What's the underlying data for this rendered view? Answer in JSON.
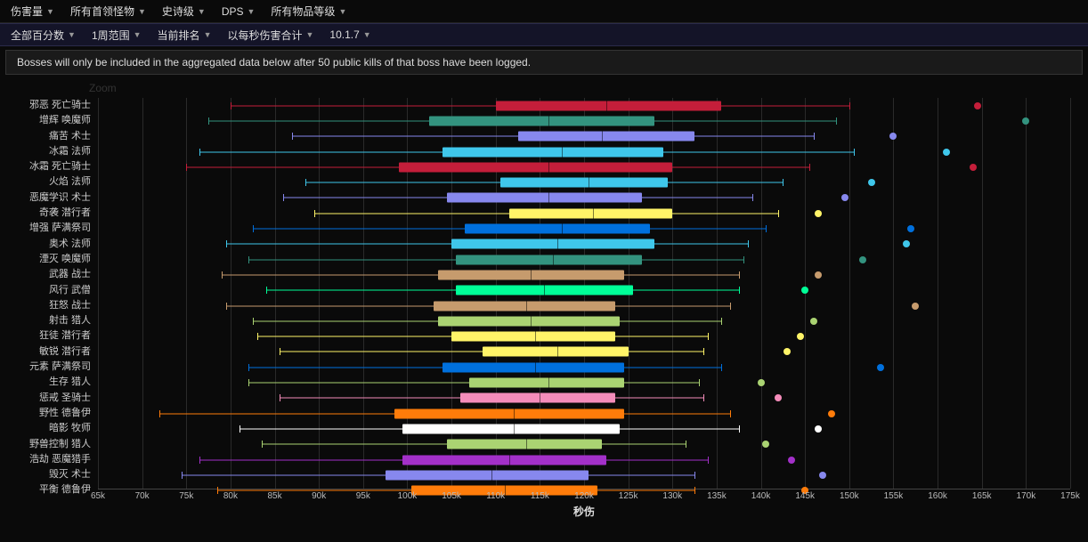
{
  "filters_top": [
    {
      "label": "伤害量"
    },
    {
      "label": "所有首领怪物"
    },
    {
      "label": "史诗级"
    },
    {
      "label": "DPS"
    },
    {
      "label": "所有物品等级"
    }
  ],
  "filters_sub": [
    {
      "label": "全部百分数"
    },
    {
      "label": "1周范围"
    },
    {
      "label": "当前排名"
    },
    {
      "label": "以每秒伤害合计"
    },
    {
      "label": "10.1.7"
    }
  ],
  "notice": "Bosses will only be included in the aggregated data below after 50 public kills of that boss have been logged.",
  "zoom_label": "Zoom",
  "chart": {
    "type": "boxplot",
    "x_axis_label": "秒伤",
    "xlim": [
      65000,
      175000
    ],
    "xtick_step": 5000,
    "tick_suffix": "k",
    "background_color": "#0a0a0a",
    "grid_color": "#2a2a2a",
    "label_fontsize": 11,
    "specs": [
      {
        "name": "邪恶 死亡骑士",
        "color": "#c41e3a",
        "whisker_lo": 80000,
        "q1": 110000,
        "median": 122500,
        "q3": 135500,
        "whisker_hi": 150000,
        "outlier": 164500
      },
      {
        "name": "增辉 唤魔师",
        "color": "#33937f",
        "whisker_lo": 77500,
        "q1": 102500,
        "median": 116000,
        "q3": 128000,
        "whisker_hi": 148500,
        "outlier": 170000
      },
      {
        "name": "痛苦 术士",
        "color": "#8788ee",
        "whisker_lo": 87000,
        "q1": 112500,
        "median": 122000,
        "q3": 132500,
        "whisker_hi": 146000,
        "outlier": 155000
      },
      {
        "name": "冰霜 法师",
        "color": "#3fc7eb",
        "whisker_lo": 76500,
        "q1": 104000,
        "median": 117500,
        "q3": 129000,
        "whisker_hi": 150500,
        "outlier": 161000
      },
      {
        "name": "冰霜 死亡骑士",
        "color": "#c41e3a",
        "whisker_lo": 75000,
        "q1": 99000,
        "median": 116000,
        "q3": 130000,
        "whisker_hi": 145500,
        "outlier": 164000
      },
      {
        "name": "火焰 法师",
        "color": "#3fc7eb",
        "whisker_lo": 88500,
        "q1": 110500,
        "median": 120500,
        "q3": 129500,
        "whisker_hi": 142500,
        "outlier": 152500
      },
      {
        "name": "恶魔学识 术士",
        "color": "#8788ee",
        "whisker_lo": 86000,
        "q1": 104500,
        "median": 116000,
        "q3": 126500,
        "whisker_hi": 139000,
        "outlier": 149500
      },
      {
        "name": "奇袭 潜行者",
        "color": "#fff468",
        "whisker_lo": 89500,
        "q1": 111500,
        "median": 121000,
        "q3": 130000,
        "whisker_hi": 142000,
        "outlier": 146500
      },
      {
        "name": "增强 萨满祭司",
        "color": "#0070dd",
        "whisker_lo": 82500,
        "q1": 106500,
        "median": 117500,
        "q3": 127500,
        "whisker_hi": 140500,
        "outlier": 157000
      },
      {
        "name": "奥术 法师",
        "color": "#3fc7eb",
        "whisker_lo": 79500,
        "q1": 105000,
        "median": 117000,
        "q3": 128000,
        "whisker_hi": 138500,
        "outlier": 156500
      },
      {
        "name": "湮灭 唤魔师",
        "color": "#33937f",
        "whisker_lo": 82000,
        "q1": 105500,
        "median": 116500,
        "q3": 126500,
        "whisker_hi": 138000,
        "outlier": 151500
      },
      {
        "name": "武器 战士",
        "color": "#c69b6d",
        "whisker_lo": 79000,
        "q1": 103500,
        "median": 114000,
        "q3": 124500,
        "whisker_hi": 137500,
        "outlier": 146500
      },
      {
        "name": "风行 武僧",
        "color": "#00ff98",
        "whisker_lo": 84000,
        "q1": 105500,
        "median": 115500,
        "q3": 125500,
        "whisker_hi": 137500,
        "outlier": 145000
      },
      {
        "name": "狂怒 战士",
        "color": "#c69b6d",
        "whisker_lo": 79500,
        "q1": 103000,
        "median": 113500,
        "q3": 123500,
        "whisker_hi": 136500,
        "outlier": 157500
      },
      {
        "name": "射击 猎人",
        "color": "#aad372",
        "whisker_lo": 82500,
        "q1": 103500,
        "median": 114000,
        "q3": 124000,
        "whisker_hi": 135500,
        "outlier": 146000
      },
      {
        "name": "狂徒 潜行者",
        "color": "#fff468",
        "whisker_lo": 83000,
        "q1": 105000,
        "median": 114500,
        "q3": 123500,
        "whisker_hi": 134000,
        "outlier": 144500
      },
      {
        "name": "敏锐 潜行者",
        "color": "#fff468",
        "whisker_lo": 85500,
        "q1": 108500,
        "median": 117000,
        "q3": 125000,
        "whisker_hi": 133500,
        "outlier": 143000
      },
      {
        "name": "元素 萨满祭司",
        "color": "#0070dd",
        "whisker_lo": 82000,
        "q1": 104000,
        "median": 114500,
        "q3": 124500,
        "whisker_hi": 135500,
        "outlier": 153500
      },
      {
        "name": "生存 猎人",
        "color": "#aad372",
        "whisker_lo": 82000,
        "q1": 107000,
        "median": 116000,
        "q3": 124500,
        "whisker_hi": 133000,
        "outlier": 140000
      },
      {
        "name": "惩戒 圣骑士",
        "color": "#f48cba",
        "whisker_lo": 85500,
        "q1": 106000,
        "median": 115000,
        "q3": 123500,
        "whisker_hi": 133500,
        "outlier": 142000
      },
      {
        "name": "野性 德鲁伊",
        "color": "#ff7c0a",
        "whisker_lo": 72000,
        "q1": 98500,
        "median": 112000,
        "q3": 124500,
        "whisker_hi": 136500,
        "outlier": 148000
      },
      {
        "name": "暗影 牧师",
        "color": "#ffffff",
        "whisker_lo": 81000,
        "q1": 99500,
        "median": 112000,
        "q3": 124000,
        "whisker_hi": 137500,
        "outlier": 146500
      },
      {
        "name": "野兽控制 猎人",
        "color": "#aad372",
        "whisker_lo": 83500,
        "q1": 104500,
        "median": 113500,
        "q3": 122000,
        "whisker_hi": 131500,
        "outlier": 140500
      },
      {
        "name": "浩劫 恶魔猎手",
        "color": "#a330c9",
        "whisker_lo": 76500,
        "q1": 99500,
        "median": 111500,
        "q3": 122500,
        "whisker_hi": 134000,
        "outlier": 143500
      },
      {
        "name": "毁灭 术士",
        "color": "#8788ee",
        "whisker_lo": 74500,
        "q1": 97500,
        "median": 109500,
        "q3": 120500,
        "whisker_hi": 132500,
        "outlier": 147000
      },
      {
        "name": "平衡 德鲁伊",
        "color": "#ff7c0a",
        "whisker_lo": 78500,
        "q1": 100500,
        "median": 111000,
        "q3": 121500,
        "whisker_hi": 132500,
        "outlier": 145000
      }
    ]
  }
}
